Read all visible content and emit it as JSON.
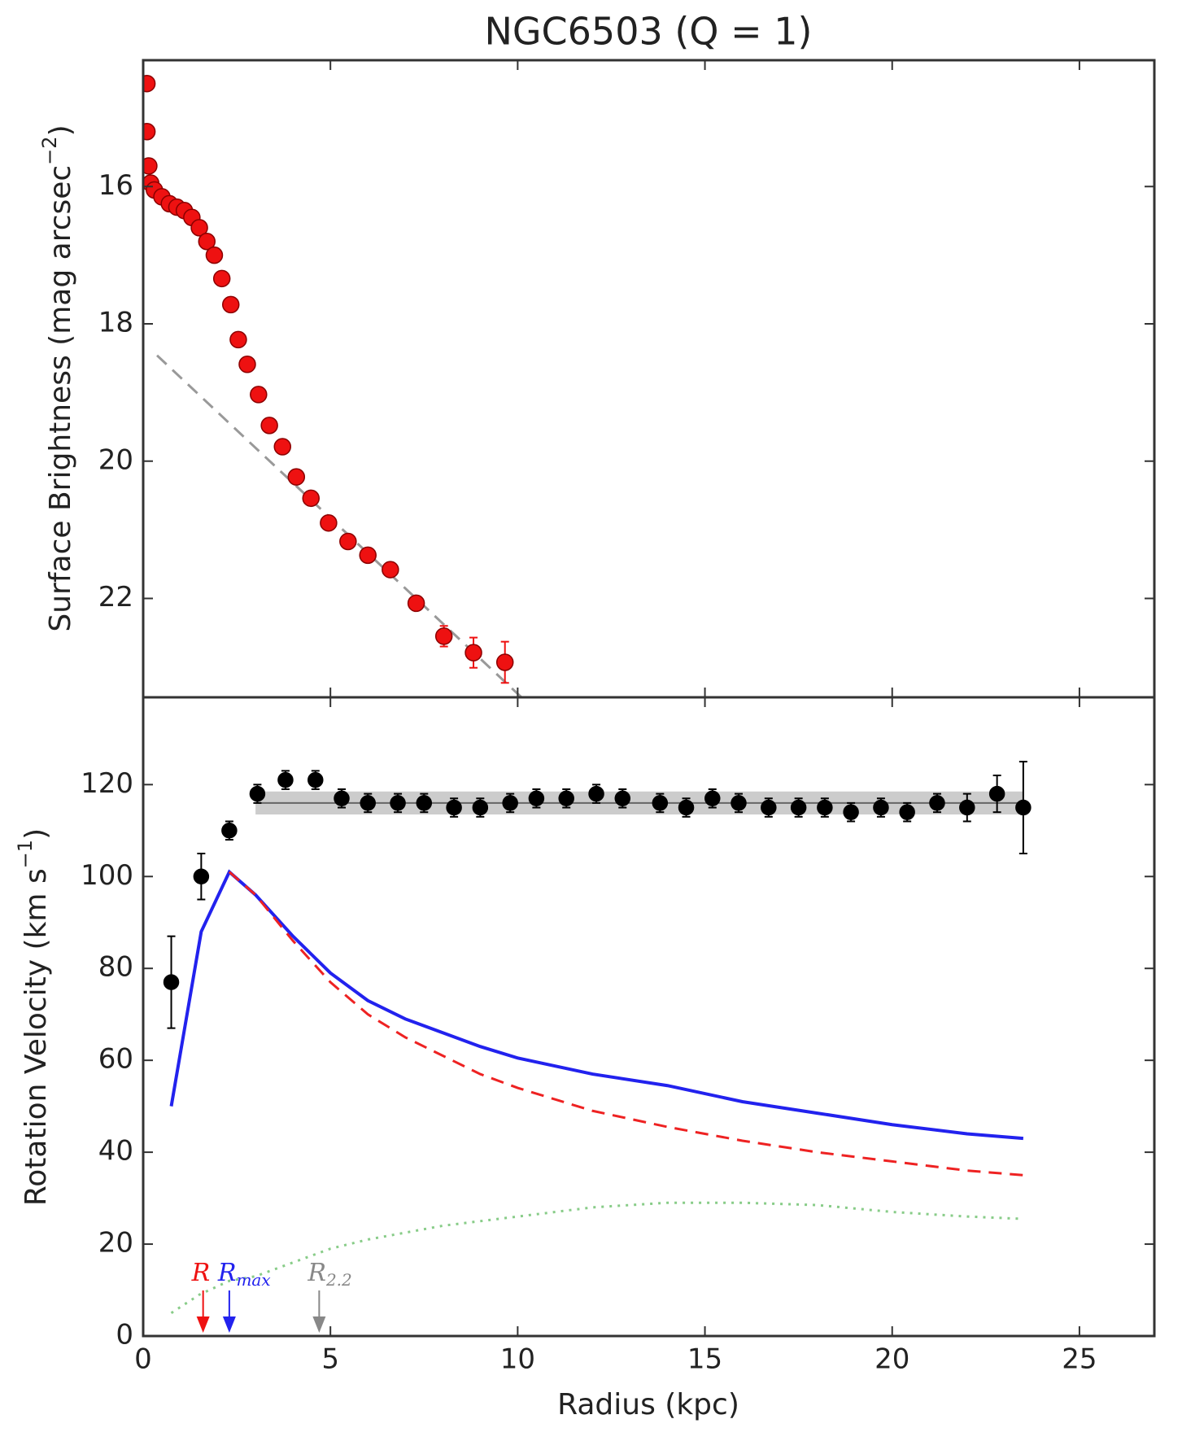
{
  "chart_data": [
    {
      "type": "scatter",
      "title": "NGC6503 (Q = 1)",
      "ylabel": {
        "text": "Surface Brightness (mag arcsec",
        "sup": "−2",
        "tail": ")"
      },
      "xlim": [
        0,
        27
      ],
      "xticks": [
        0,
        5,
        10,
        15,
        20,
        25
      ],
      "ylim": [
        23.44,
        14.16
      ],
      "yticks": [
        16,
        18,
        20,
        22
      ],
      "points": {
        "color": "#ee1111",
        "x": [
          0.1,
          0.1,
          0.15,
          0.2,
          0.3,
          0.5,
          0.7,
          0.9,
          1.1,
          1.3,
          1.5,
          1.7,
          1.9,
          2.1,
          2.34,
          2.54,
          2.78,
          3.08,
          3.37,
          3.72,
          4.09,
          4.48,
          4.95,
          5.47,
          6.0,
          6.6,
          7.29,
          8.03,
          8.82,
          9.66
        ],
        "values": [
          14.5,
          15.2,
          15.7,
          15.95,
          16.05,
          16.15,
          16.25,
          16.3,
          16.35,
          16.45,
          16.6,
          16.8,
          17.0,
          17.34,
          17.72,
          18.23,
          18.59,
          19.03,
          19.48,
          19.79,
          20.23,
          20.54,
          20.9,
          21.17,
          21.37,
          21.58,
          22.07,
          22.55,
          22.79,
          22.93
        ],
        "errors": [
          null,
          null,
          null,
          null,
          null,
          null,
          null,
          null,
          null,
          null,
          null,
          null,
          null,
          null,
          null,
          null,
          null,
          null,
          null,
          null,
          null,
          null,
          null,
          null,
          null,
          null,
          0.08,
          0.15,
          0.22,
          0.3
        ]
      },
      "fit": {
        "color": "#999999",
        "x": [
          0.37,
          10.1
        ],
        "values": [
          18.46,
          23.44
        ]
      }
    },
    {
      "type": "line",
      "xlabel": "Radius (kpc)",
      "ylabel": {
        "text": "Rotation Velocity (km s",
        "sup": "−1",
        "tail": ")"
      },
      "xlim": [
        0,
        27
      ],
      "xticks": [
        0,
        5,
        10,
        15,
        20,
        25
      ],
      "ylim": [
        0,
        139
      ],
      "yticks": [
        0,
        20,
        40,
        60,
        80,
        100,
        120
      ],
      "band": {
        "color": "#aaaaaa",
        "x": [
          3.0,
          23.5
        ],
        "lower": [
          113.5,
          113.5
        ],
        "upper": [
          118.5,
          118.5
        ],
        "center": [
          116,
          116
        ]
      },
      "points": {
        "color": "#000000",
        "x": [
          0.75,
          1.55,
          2.3,
          3.05,
          3.8,
          4.6,
          5.3,
          6.0,
          6.8,
          7.5,
          8.3,
          9.0,
          9.8,
          10.5,
          11.3,
          12.1,
          12.8,
          13.8,
          14.5,
          15.2,
          15.9,
          16.7,
          17.5,
          18.2,
          18.9,
          19.7,
          20.4,
          21.2,
          22.0,
          22.8,
          23.5
        ],
        "values": [
          77,
          100,
          110,
          118,
          121,
          121,
          117,
          116,
          116,
          116,
          115,
          115,
          116,
          117,
          117,
          118,
          117,
          116,
          115,
          117,
          116,
          115,
          115,
          115,
          114,
          115,
          114,
          116,
          115,
          118,
          115
        ],
        "errors": [
          10,
          5,
          2,
          2,
          2,
          2,
          2,
          2,
          2,
          2,
          2,
          2,
          2,
          2,
          2,
          2,
          2,
          2,
          2,
          2,
          2,
          2,
          2,
          2,
          2,
          2,
          2,
          2,
          3,
          4,
          10
        ]
      },
      "series": [
        {
          "color": "#2222ee",
          "style": "solid",
          "x": [
            0.75,
            1.55,
            2.3,
            3.0,
            4.0,
            5.0,
            6.0,
            7.0,
            8.0,
            9.0,
            10,
            12,
            14,
            16,
            18,
            20,
            22,
            23.5
          ],
          "values": [
            50,
            88,
            101,
            96,
            87,
            79,
            73,
            69,
            66,
            63,
            60.5,
            57,
            54.5,
            51,
            48.5,
            46,
            44,
            43
          ]
        },
        {
          "color": "#ee2222",
          "style": "dashed",
          "x": [
            2.3,
            3,
            4,
            5,
            6,
            7,
            8,
            9,
            10,
            12,
            14,
            16,
            18,
            20,
            22,
            23.5
          ],
          "values": [
            101,
            96,
            86,
            77,
            70,
            65,
            61,
            57,
            54,
            49,
            45.5,
            42.5,
            40,
            38,
            36,
            35
          ]
        },
        {
          "color": "#88cc88",
          "style": "dotted",
          "x": [
            0.75,
            1.5,
            2.3,
            3,
            4,
            5,
            6,
            8,
            10,
            12,
            14,
            16,
            18,
            20,
            22,
            23.5
          ],
          "values": [
            5,
            9,
            12,
            13,
            16,
            19,
            21,
            24,
            26,
            28,
            29,
            29,
            28.5,
            27,
            26,
            25.5
          ]
        },
        {
          "color": "#aa3366",
          "style": "dashed",
          "x": [
            0,
            23.5
          ],
          "values": [
            0,
            0
          ]
        }
      ],
      "arrows": [
        {
          "text": "R",
          "x": 1.6,
          "color": "#ee1111"
        },
        {
          "text": "R",
          "sub": "max",
          "x": 2.3,
          "color": "#2222ee"
        },
        {
          "text": "R",
          "sub": "2.2",
          "x": 4.7,
          "color": "#888888"
        }
      ]
    }
  ]
}
